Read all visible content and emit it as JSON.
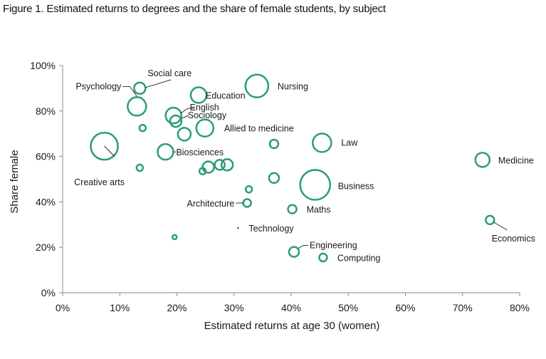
{
  "title": "Figure 1. Estimated returns to degrees and the share of female students, by subject",
  "colors": {
    "bubble": "#2a9d78",
    "axis": "#8a8a8a",
    "text": "#1a1a1a"
  },
  "chart_data": {
    "type": "scatter",
    "title": "Figure 1. Estimated returns to degrees and the share of female students, by subject",
    "xlabel": "Estimated returns at age 30 (women)",
    "ylabel": "Share female",
    "xlim": [
      0,
      80
    ],
    "ylim": [
      0,
      100
    ],
    "x_ticks": [
      "0%",
      "10%",
      "20%",
      "30%",
      "40%",
      "50%",
      "60%",
      "70%",
      "80%"
    ],
    "y_ticks": [
      "0%",
      "20%",
      "40%",
      "60%",
      "80%",
      "100%"
    ],
    "grid": false,
    "points": [
      {
        "name": "Social care",
        "x": 13.5,
        "y": 90,
        "size": 8
      },
      {
        "name": "Psychology",
        "x": 13,
        "y": 82,
        "size": 13
      },
      {
        "name": "",
        "x": 14,
        "y": 72.5,
        "size": 4.5
      },
      {
        "name": "Education",
        "x": 23.8,
        "y": 87,
        "size": 11
      },
      {
        "name": "Nursing",
        "x": 34,
        "y": 91,
        "size": 16
      },
      {
        "name": "English",
        "x": 19.4,
        "y": 78,
        "size": 11
      },
      {
        "name": "Sociology",
        "x": 19.8,
        "y": 75.5,
        "size": 8
      },
      {
        "name": "",
        "x": 21.3,
        "y": 69.8,
        "size": 9
      },
      {
        "name": "Allied to medicine",
        "x": 24.9,
        "y": 72.5,
        "size": 12
      },
      {
        "name": "Biosciences",
        "x": 18,
        "y": 62,
        "size": 11
      },
      {
        "name": "",
        "x": 37,
        "y": 65.5,
        "size": 6
      },
      {
        "name": "Law",
        "x": 45.4,
        "y": 66,
        "size": 13
      },
      {
        "name": "Medicine",
        "x": 73.5,
        "y": 58.5,
        "size": 10
      },
      {
        "name": "Creative arts",
        "x": 7.3,
        "y": 64.5,
        "size": 19
      },
      {
        "name": "",
        "x": 13.5,
        "y": 55,
        "size": 4.5
      },
      {
        "name": "",
        "x": 24.5,
        "y": 53.5,
        "size": 4.5
      },
      {
        "name": "",
        "x": 25.5,
        "y": 55.3,
        "size": 8
      },
      {
        "name": "",
        "x": 27.5,
        "y": 56.3,
        "size": 7
      },
      {
        "name": "",
        "x": 28.8,
        "y": 56.3,
        "size": 8
      },
      {
        "name": "",
        "x": 37,
        "y": 50.5,
        "size": 7
      },
      {
        "name": "Business",
        "x": 44.2,
        "y": 47.5,
        "size": 21
      },
      {
        "name": "",
        "x": 32.6,
        "y": 45.5,
        "size": 4.5
      },
      {
        "name": "Architecture",
        "x": 32.3,
        "y": 39.5,
        "size": 5.5
      },
      {
        "name": "Maths",
        "x": 40.2,
        "y": 36.8,
        "size": 6
      },
      {
        "name": "Economics",
        "x": 74.8,
        "y": 32,
        "size": 6
      },
      {
        "name": "Technology",
        "x": 30.7,
        "y": 28.5,
        "size": 1.5
      },
      {
        "name": "",
        "x": 19.6,
        "y": 24.5,
        "size": 3
      },
      {
        "name": "Engineering",
        "x": 40.5,
        "y": 18,
        "size": 7
      },
      {
        "name": "Computing",
        "x": 45.6,
        "y": 15.5,
        "size": 5.5
      }
    ]
  }
}
